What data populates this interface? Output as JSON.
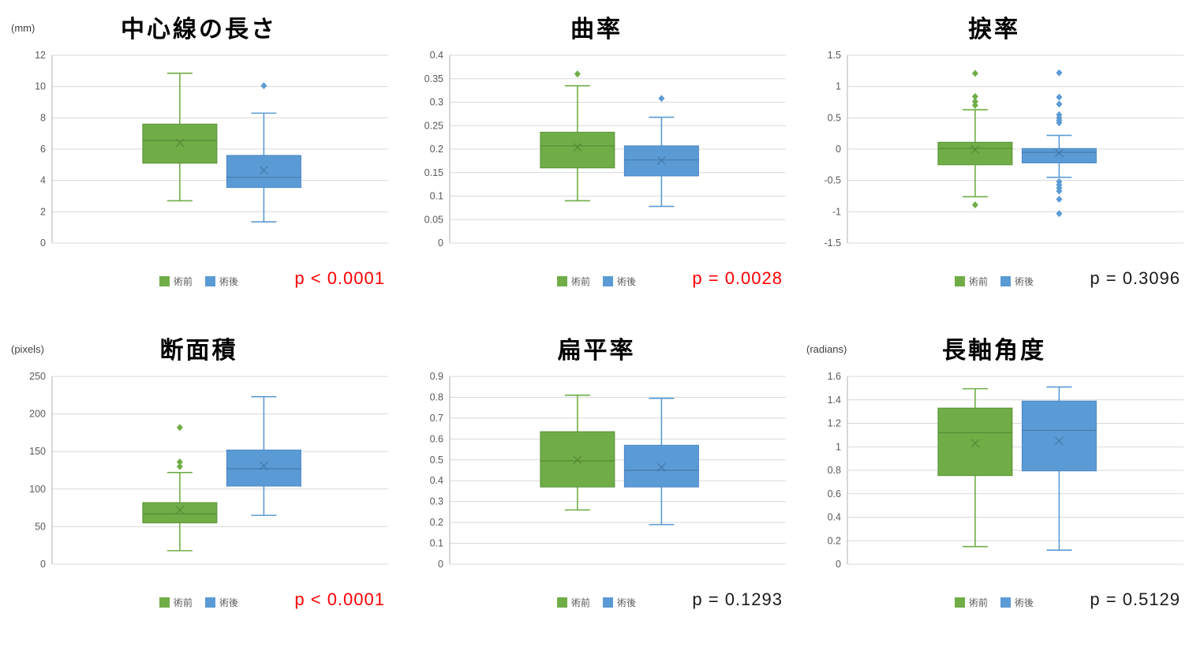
{
  "page": {
    "background": "#ffffff"
  },
  "colors": {
    "preop_fill": "#70AD47",
    "preop_stroke": "#5a9137",
    "preop_dark": "#4f8631",
    "postop_fill": "#5B9BD5",
    "postop_stroke": "#4a86c8",
    "postop_dark": "#3f74a3",
    "grid_line": "#d9d9d9",
    "axis_line": "#bfbfbf",
    "tick_text": "#595959",
    "p_significant": "#ff0000",
    "p_not_significant": "#1a1a1a"
  },
  "legend": {
    "preop_label": "術前",
    "postop_label": "術後"
  },
  "chart_data": [
    {
      "type": "box",
      "title": "中心線の長さ",
      "unit": "(mm)",
      "p_label": "p < 0.0001",
      "p_significant": true,
      "ylim": [
        0,
        12
      ],
      "ticks": [
        "0",
        "2",
        "4",
        "6",
        "8",
        "10",
        "12"
      ],
      "grid": true,
      "legend_position": "bottom",
      "series": [
        {
          "name": "術前",
          "whisker_low": 2.7,
          "q1": 5.1,
          "median": 6.55,
          "mean": 6.4,
          "q3": 7.6,
          "whisker_high": 10.85,
          "outliers": []
        },
        {
          "name": "術後",
          "whisker_low": 1.35,
          "q1": 3.55,
          "median": 4.2,
          "mean": 4.65,
          "q3": 5.6,
          "whisker_high": 8.3,
          "outliers": [
            10.05
          ]
        }
      ]
    },
    {
      "type": "box",
      "title": "曲率",
      "unit": "",
      "p_label": "p = 0.0028",
      "p_significant": true,
      "ylim": [
        0,
        0.4
      ],
      "ticks": [
        "0",
        "0.05",
        "0.1",
        "0.15",
        "0.2",
        "0.25",
        "0.3",
        "0.35",
        "0.4"
      ],
      "grid": true,
      "legend_position": "bottom",
      "series": [
        {
          "name": "術前",
          "whisker_low": 0.09,
          "q1": 0.16,
          "median": 0.207,
          "mean": 0.204,
          "q3": 0.236,
          "whisker_high": 0.335,
          "outliers": [
            0.36
          ]
        },
        {
          "name": "術後",
          "whisker_low": 0.078,
          "q1": 0.143,
          "median": 0.177,
          "mean": 0.176,
          "q3": 0.207,
          "whisker_high": 0.268,
          "outliers": [
            0.308
          ]
        }
      ]
    },
    {
      "type": "box",
      "title": "捩率",
      "unit": "",
      "p_label": "p = 0.3096",
      "p_significant": false,
      "ylim": [
        -1.5,
        1.5
      ],
      "ticks": [
        "-1.5",
        "-1",
        "-0.5",
        "0",
        "0.5",
        "1",
        "1.5"
      ],
      "grid": true,
      "legend_position": "bottom",
      "series": [
        {
          "name": "術前",
          "whisker_low": -0.76,
          "q1": -0.25,
          "median": 0.01,
          "mean": -0.01,
          "q3": 0.11,
          "whisker_high": 0.63,
          "outliers": [
            1.21,
            0.84,
            0.76,
            0.7,
            -0.89
          ]
        },
        {
          "name": "術後",
          "whisker_low": -0.45,
          "q1": -0.22,
          "median": -0.05,
          "mean": -0.06,
          "q3": 0.01,
          "whisker_high": 0.22,
          "outliers": [
            1.22,
            0.83,
            0.72,
            0.55,
            0.5,
            0.46,
            0.42,
            -0.52,
            -0.57,
            -0.62,
            -0.67,
            -0.8,
            -1.03
          ]
        }
      ]
    },
    {
      "type": "box",
      "title": "断面積",
      "unit": "(pixels)",
      "p_label": "p < 0.0001",
      "p_significant": true,
      "ylim": [
        0,
        250
      ],
      "ticks": [
        "0",
        "50",
        "100",
        "150",
        "200",
        "250"
      ],
      "grid": true,
      "legend_position": "bottom",
      "series": [
        {
          "name": "術前",
          "whisker_low": 18,
          "q1": 55,
          "median": 67,
          "mean": 72,
          "q3": 82,
          "whisker_high": 122,
          "outliers": [
            130,
            136,
            182
          ]
        },
        {
          "name": "術後",
          "whisker_low": 65,
          "q1": 104,
          "median": 127,
          "mean": 131,
          "q3": 152,
          "whisker_high": 223,
          "outliers": []
        }
      ]
    },
    {
      "type": "box",
      "title": "扁平率",
      "unit": "",
      "p_label": "p = 0.1293",
      "p_significant": false,
      "ylim": [
        0,
        0.9
      ],
      "ticks": [
        "0",
        "0.1",
        "0.2",
        "0.3",
        "0.4",
        "0.5",
        "0.6",
        "0.7",
        "0.8",
        "0.9"
      ],
      "grid": true,
      "legend_position": "bottom",
      "series": [
        {
          "name": "術前",
          "whisker_low": 0.26,
          "q1": 0.37,
          "median": 0.495,
          "mean": 0.5,
          "q3": 0.635,
          "whisker_high": 0.81,
          "outliers": []
        },
        {
          "name": "術後",
          "whisker_low": 0.19,
          "q1": 0.37,
          "median": 0.45,
          "mean": 0.465,
          "q3": 0.57,
          "whisker_high": 0.795,
          "outliers": []
        }
      ]
    },
    {
      "type": "box",
      "title": "長軸角度",
      "unit": "(radians)",
      "p_label": "p = 0.5129",
      "p_significant": false,
      "ylim": [
        0,
        1.6
      ],
      "ticks": [
        "0",
        "0.2",
        "0.4",
        "0.6",
        "0.8",
        "1",
        "1.2",
        "1.4",
        "1.6"
      ],
      "grid": true,
      "legend_position": "bottom",
      "series": [
        {
          "name": "術前",
          "whisker_low": 0.15,
          "q1": 0.755,
          "median": 1.12,
          "mean": 1.03,
          "q3": 1.33,
          "whisker_high": 1.495,
          "outliers": []
        },
        {
          "name": "術後",
          "whisker_low": 0.12,
          "q1": 0.795,
          "median": 1.14,
          "mean": 1.05,
          "q3": 1.39,
          "whisker_high": 1.51,
          "outliers": []
        }
      ]
    }
  ]
}
